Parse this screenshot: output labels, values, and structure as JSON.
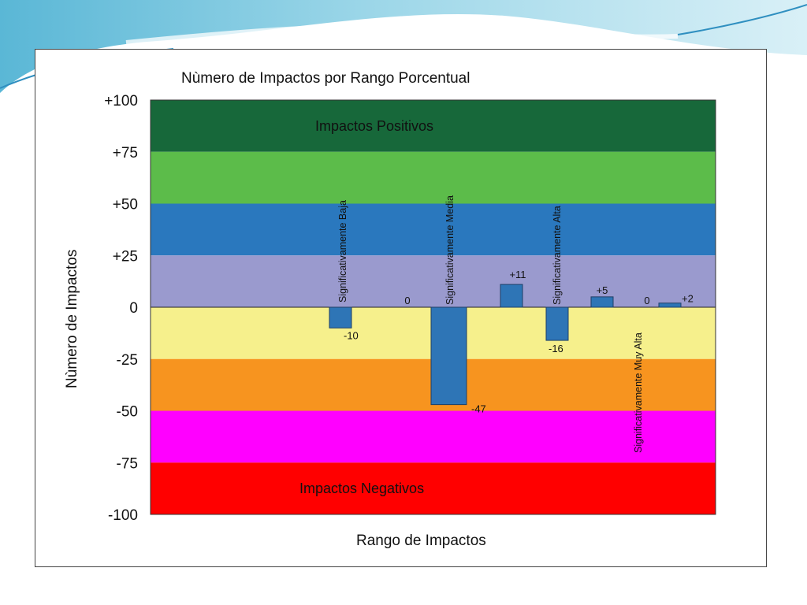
{
  "chart_data": {
    "type": "bar",
    "title": "Nùmero de Impactos por Rango Porcentual",
    "xlabel": "Rango de Impactos",
    "ylabel": "Nùmero de Impactos",
    "ylim": [
      -100,
      100
    ],
    "yticks": [
      {
        "value": 100,
        "label": "+100"
      },
      {
        "value": 75,
        "label": "+75"
      },
      {
        "value": 50,
        "label": "+50"
      },
      {
        "value": 25,
        "label": "+25"
      },
      {
        "value": 0,
        "label": "0"
      },
      {
        "value": -25,
        "label": "-25"
      },
      {
        "value": -50,
        "label": "-50"
      },
      {
        "value": -75,
        "label": "-75"
      },
      {
        "value": -100,
        "label": "-100"
      }
    ],
    "bands": [
      {
        "from": 75,
        "to": 100,
        "color": "#17683a"
      },
      {
        "from": 50,
        "to": 75,
        "color": "#5cbc4a"
      },
      {
        "from": 25,
        "to": 50,
        "color": "#2a78be"
      },
      {
        "from": 0,
        "to": 25,
        "color": "#9a9ace"
      },
      {
        "from": -25,
        "to": 0,
        "color": "#f6f08c"
      },
      {
        "from": -50,
        "to": -25,
        "color": "#f7941f"
      },
      {
        "from": -75,
        "to": -50,
        "color": "#ff00ff"
      },
      {
        "from": -100,
        "to": -75,
        "color": "#ff0000"
      }
    ],
    "band_texts": {
      "positive": "Impactos Positivos",
      "negative": "Impactos Negativos"
    },
    "category_labels": [
      "Significativamente Baja",
      "Significativamente Media",
      "Significativamente Alta",
      "Significativamente Muy Alta"
    ],
    "bars": [
      {
        "value": -10,
        "label": "-10"
      },
      {
        "value": 0,
        "label": "0"
      },
      {
        "value": -47,
        "label": "-47"
      },
      {
        "value": 11,
        "label": "+11"
      },
      {
        "value": -16,
        "label": "-16"
      },
      {
        "value": 5,
        "label": "+5"
      },
      {
        "value": 0,
        "label": "0"
      },
      {
        "value": 2,
        "label": "+2"
      }
    ],
    "bar_color": "#2e75b6",
    "grid": false,
    "legend": "none"
  }
}
